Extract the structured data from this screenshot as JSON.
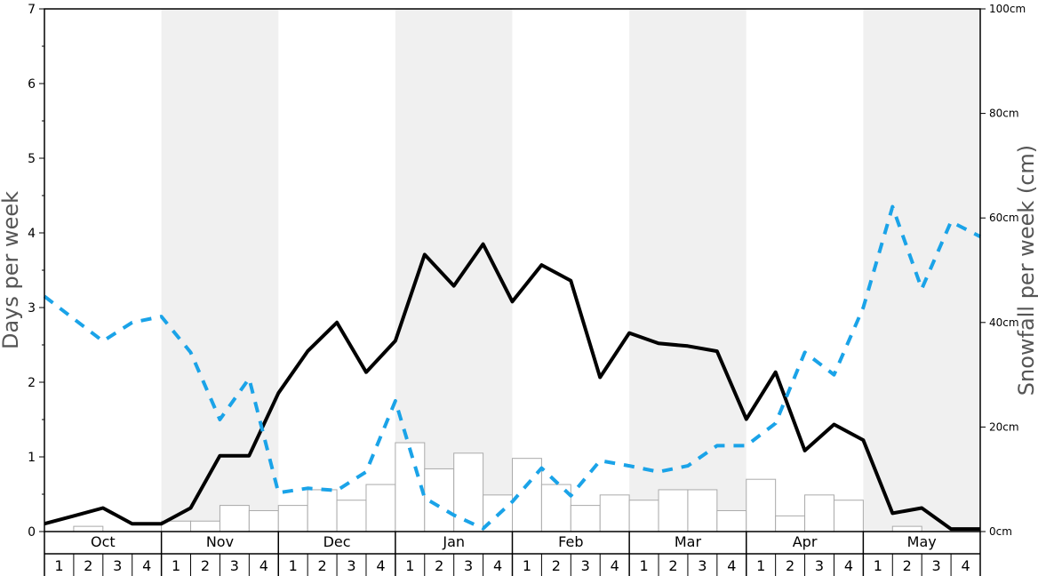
{
  "chart_data": {
    "type": "bar+line",
    "ylabel_left": "Days per week",
    "ylabel_right": "Snowfall per week (cm)",
    "y_left_ticks": [
      "0",
      "1",
      "2",
      "3",
      "4",
      "5",
      "6",
      "7"
    ],
    "y_left_range": [
      0,
      7
    ],
    "y_right_ticks": [
      "0cm",
      "20cm",
      "40cm",
      "60cm",
      "80cm",
      "100cm"
    ],
    "y_right_range": [
      0,
      100
    ],
    "months": [
      "Oct",
      "Nov",
      "Dec",
      "Jan",
      "Feb",
      "Mar",
      "Apr",
      "May"
    ],
    "weeks_per_month": [
      "1",
      "2",
      "3",
      "4"
    ],
    "shaded_months": [
      "Nov",
      "Jan",
      "Mar",
      "May"
    ],
    "shade_color": "#f0f0f0",
    "series": [
      {
        "style": "bars",
        "axis": "left",
        "color": "#ffffff",
        "stroke": "#aaaaaa",
        "values": [
          0,
          0.07,
          0,
          0,
          0.14,
          0.14,
          0.35,
          0.28,
          0.35,
          0.56,
          0.42,
          0.63,
          1.19,
          0.84,
          1.05,
          0.49,
          0.98,
          0.63,
          0.35,
          0.49,
          0.42,
          0.56,
          0.56,
          0.28,
          0.7,
          0.21,
          0.49,
          0.42,
          0,
          0.07,
          0,
          0
        ]
      },
      {
        "style": "solid-line",
        "axis": "right",
        "color": "#000000",
        "values": [
          1.5,
          3.0,
          4.5,
          1.5,
          1.5,
          4.5,
          14.5,
          14.5,
          26.5,
          34.5,
          40.0,
          30.5,
          36.5,
          53.0,
          47.0,
          55.0,
          44.0,
          51.0,
          48.0,
          29.5,
          38.0,
          36.0,
          35.5,
          34.5,
          21.5,
          30.5,
          15.5,
          20.5,
          17.5,
          3.5,
          4.5,
          0.5,
          0.5
        ]
      },
      {
        "style": "dashed-line",
        "axis": "left",
        "color": "#1aa3e8",
        "values": [
          3.15,
          2.85,
          2.55,
          2.8,
          2.88,
          2.4,
          1.5,
          2.05,
          0.52,
          0.58,
          0.55,
          0.8,
          1.75,
          0.45,
          0.22,
          0.04,
          0.4,
          0.85,
          0.48,
          0.95,
          0.88,
          0.8,
          0.88,
          1.15,
          1.15,
          1.45,
          2.4,
          2.1,
          3.0,
          4.35,
          3.25,
          4.15,
          3.95
        ]
      }
    ]
  }
}
